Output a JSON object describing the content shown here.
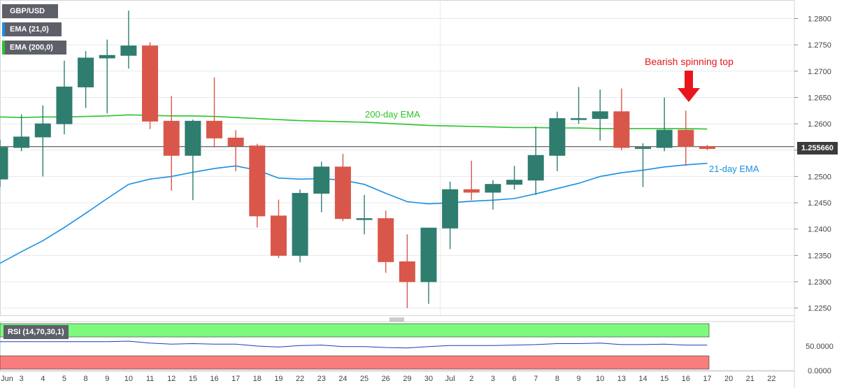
{
  "legend": {
    "symbol": "GBP/USD",
    "ema21": "EMA (21,0)",
    "ema200": "EMA (200,0)",
    "rsi": "RSI (14,70,30,1)"
  },
  "annotations": {
    "spinning_top": "Bearish spinning top",
    "ema200": "200-day EMA",
    "ema21": "21-day EMA"
  },
  "current_price": "1.255660",
  "colors": {
    "bull": "#2e7d6f",
    "bear": "#d9574a",
    "ema21": "#1a8fe0",
    "ema200": "#2ec22e",
    "arrow": "#e8161b",
    "rsi_overbought": "#7dfa7d",
    "rsi_oversold": "#fa7d7d",
    "rsi_line": "#1f3cb8"
  },
  "chart_data": [
    {
      "type": "candlestick",
      "x": [
        "Jun",
        "3",
        "4",
        "5",
        "8",
        "9",
        "10",
        "11",
        "12",
        "15",
        "16",
        "17",
        "18",
        "19",
        "22",
        "23",
        "24",
        "25",
        "26",
        "29",
        "30",
        "Jul",
        "2",
        "3",
        "6",
        "7",
        "8",
        "9",
        "10",
        "13",
        "14",
        "15",
        "16",
        "17"
      ],
      "ohlc": [
        [
          1.2495,
          1.257,
          1.248,
          1.2555
        ],
        [
          1.2555,
          1.2618,
          1.2548,
          1.2575
        ],
        [
          1.2575,
          1.2635,
          1.25,
          1.26
        ],
        [
          1.26,
          1.272,
          1.258,
          1.267
        ],
        [
          1.267,
          1.2738,
          1.263,
          1.2725
        ],
        [
          1.2725,
          1.276,
          1.262,
          1.273
        ],
        [
          1.273,
          1.2815,
          1.2705,
          1.2748
        ],
        [
          1.2748,
          1.2755,
          1.259,
          1.2605
        ],
        [
          1.2605,
          1.2653,
          1.2473,
          1.254
        ],
        [
          1.254,
          1.2608,
          1.2455,
          1.2605
        ],
        [
          1.2605,
          1.2688,
          1.2555,
          1.2573
        ],
        [
          1.2573,
          1.2588,
          1.251,
          1.2558
        ],
        [
          1.2558,
          1.2562,
          1.2403,
          1.2425
        ],
        [
          1.2425,
          1.2456,
          1.2345,
          1.235
        ],
        [
          1.235,
          1.2475,
          1.2337,
          1.2468
        ],
        [
          1.2468,
          1.2528,
          1.2432,
          1.2518
        ],
        [
          1.2518,
          1.2543,
          1.2415,
          1.242
        ],
        [
          1.242,
          1.2465,
          1.239,
          1.242
        ],
        [
          1.242,
          1.2435,
          1.2317,
          1.2338
        ],
        [
          1.2338,
          1.239,
          1.225,
          1.23
        ],
        [
          1.23,
          1.2402,
          1.2258,
          1.2402
        ],
        [
          1.2402,
          1.249,
          1.2362,
          1.2475
        ],
        [
          1.2475,
          1.253,
          1.2455,
          1.247
        ],
        [
          1.247,
          1.2493,
          1.2437,
          1.2485
        ],
        [
          1.2485,
          1.252,
          1.2475,
          1.2493
        ],
        [
          1.2493,
          1.2595,
          1.2465,
          1.254
        ],
        [
          1.254,
          1.2623,
          1.251,
          1.261
        ],
        [
          1.261,
          1.267,
          1.26,
          1.261
        ],
        [
          1.261,
          1.2665,
          1.2568,
          1.2623
        ],
        [
          1.2623,
          1.2667,
          1.255,
          1.2555
        ],
        [
          1.2555,
          1.2563,
          1.248,
          1.2555
        ],
        [
          1.2555,
          1.265,
          1.2548,
          1.2588
        ],
        [
          1.2588,
          1.2625,
          1.252,
          1.2557
        ],
        [
          1.2557,
          1.256,
          1.255,
          1.2553
        ]
      ],
      "ema21": [
        1.2335,
        1.2357,
        1.2378,
        1.2403,
        1.243,
        1.2458,
        1.2485,
        1.2495,
        1.25,
        1.2508,
        1.2515,
        1.252,
        1.2512,
        1.2497,
        1.2495,
        1.2496,
        1.2493,
        1.2485,
        1.2468,
        1.2452,
        1.2448,
        1.245,
        1.2453,
        1.2455,
        1.2458,
        1.2467,
        1.2477,
        1.2487,
        1.25,
        1.2507,
        1.2512,
        1.2518,
        1.2522,
        1.2525
      ],
      "ema200": [
        1.2613,
        1.2612,
        1.2613,
        1.2613,
        1.2614,
        1.2615,
        1.2617,
        1.2616,
        1.2615,
        1.2615,
        1.2614,
        1.2612,
        1.261,
        1.2608,
        1.2606,
        1.2605,
        1.2604,
        1.2603,
        1.2601,
        1.2599,
        1.2597,
        1.2596,
        1.2595,
        1.2594,
        1.2593,
        1.2593,
        1.2592,
        1.2592,
        1.2591,
        1.2591,
        1.2591,
        1.2591,
        1.2591,
        1.259
      ],
      "ylim": [
        1.2237,
        1.284
      ],
      "yticks": [
        "1.2800",
        "1.2750",
        "1.2700",
        "1.2650",
        "1.2600",
        "1.2550",
        "1.2500",
        "1.2450",
        "1.2400",
        "1.2350",
        "1.2300",
        "1.2250"
      ],
      "xticks_extra": [
        "20",
        "21",
        "22"
      ]
    },
    {
      "type": "line",
      "name": "RSI (14,70,30,1)",
      "values": [
        59,
        59,
        59,
        59,
        59,
        59,
        60,
        56,
        54,
        55,
        54,
        54,
        50,
        48,
        51,
        52,
        49,
        49,
        47,
        46,
        49,
        51,
        51,
        51,
        52,
        53,
        55,
        55,
        56,
        53,
        53,
        54,
        52,
        52
      ],
      "bands": {
        "overbought": 70,
        "oversold": 30
      },
      "yticks": [
        "50.0000",
        "0.0000"
      ]
    }
  ]
}
